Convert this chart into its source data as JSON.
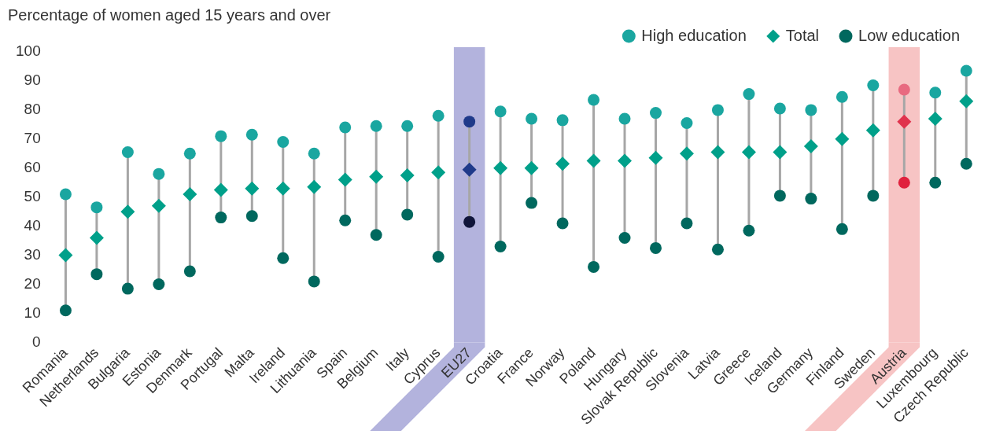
{
  "chart_data": {
    "type": "scatter",
    "ylabel": "Percentage of women aged 15 years and over",
    "categories": [
      "Romania",
      "Netherlands",
      "Bulgaria",
      "Estonia",
      "Denmark",
      "Portugal",
      "Malta",
      "Ireland",
      "Lithuania",
      "Spain",
      "Belgium",
      "Italy",
      "Cyprus",
      "EU27",
      "Croatia",
      "France",
      "Norway",
      "Poland",
      "Hungary",
      "Slovak Republic",
      "Slovenia",
      "Latvia",
      "Greece",
      "Iceland",
      "Germany",
      "Finland",
      "Sweden",
      "Austria",
      "Luxembourg",
      "Czech Republic"
    ],
    "series": [
      {
        "name": "High education",
        "type": "scatter",
        "marker": "circle",
        "color": "#1aa6a0",
        "colors": [
          "#1aa6a0",
          "#1aa6a0",
          "#1aa6a0",
          "#1aa6a0",
          "#1aa6a0",
          "#1aa6a0",
          "#1aa6a0",
          "#1aa6a0",
          "#1aa6a0",
          "#1aa6a0",
          "#1aa6a0",
          "#1aa6a0",
          "#1aa6a0",
          "#1f3a8a",
          "#1aa6a0",
          "#1aa6a0",
          "#1aa6a0",
          "#1aa6a0",
          "#1aa6a0",
          "#1aa6a0",
          "#1aa6a0",
          "#1aa6a0",
          "#1aa6a0",
          "#1aa6a0",
          "#1aa6a0",
          "#1aa6a0",
          "#1aa6a0",
          "#e86a80",
          "#1aa6a0",
          "#1aa6a0"
        ],
        "values": [
          51,
          46.5,
          65.5,
          58,
          65,
          71,
          71.5,
          69,
          65,
          74,
          74.5,
          74.5,
          78,
          76,
          79.5,
          77,
          76.5,
          83.5,
          77,
          79,
          75.5,
          80,
          85.5,
          80.5,
          80,
          84.5,
          88.5,
          87,
          86,
          93.5
        ]
      },
      {
        "name": "Total",
        "type": "scatter",
        "marker": "diamond",
        "color": "#00a08a",
        "colors": [
          "#00a08a",
          "#00a08a",
          "#00a08a",
          "#00a08a",
          "#00a08a",
          "#00a08a",
          "#00a08a",
          "#00a08a",
          "#00a08a",
          "#00a08a",
          "#00a08a",
          "#00a08a",
          "#00a08a",
          "#1f3a8a",
          "#00a08a",
          "#00a08a",
          "#00a08a",
          "#00a08a",
          "#00a08a",
          "#00a08a",
          "#00a08a",
          "#00a08a",
          "#00a08a",
          "#00a08a",
          "#00a08a",
          "#00a08a",
          "#00a08a",
          "#e0334d",
          "#00a08a",
          "#00a08a"
        ],
        "values": [
          30,
          36,
          45,
          47,
          51,
          52.5,
          53,
          53,
          53.5,
          56,
          57,
          57.5,
          58.5,
          59.5,
          60,
          60,
          61.5,
          62.5,
          62.5,
          63.5,
          65,
          65.5,
          65.5,
          65.5,
          67.5,
          70,
          73,
          76,
          77,
          83
        ]
      },
      {
        "name": "Low education",
        "type": "scatter",
        "marker": "circle",
        "color": "#00685e",
        "colors": [
          "#00685e",
          "#00685e",
          "#00685e",
          "#00685e",
          "#00685e",
          "#00685e",
          "#00685e",
          "#00685e",
          "#00685e",
          "#00685e",
          "#00685e",
          "#00685e",
          "#00685e",
          "#10153a",
          "#00685e",
          "#00685e",
          "#00685e",
          "#00685e",
          "#00685e",
          "#00685e",
          "#00685e",
          "#00685e",
          "#00685e",
          "#00685e",
          "#00685e",
          "#00685e",
          "#00685e",
          "#e0213d",
          "#00685e",
          "#00685e"
        ],
        "values": [
          11,
          23.5,
          18.5,
          20,
          24.5,
          43,
          43.5,
          29,
          21,
          42,
          37,
          44,
          29.5,
          41.5,
          33,
          48,
          41,
          26,
          36,
          32.5,
          41,
          32,
          38.5,
          50.5,
          49.5,
          39,
          50.5,
          55,
          55,
          61.5
        ]
      }
    ],
    "bands": [
      {
        "axis": "x",
        "from": "EU27",
        "to": "EU27",
        "color": "#b3b3dd"
      },
      {
        "axis": "x",
        "from": "Austria",
        "to": "Austria",
        "color": "#f7c4c4"
      }
    ],
    "ylim": [
      0,
      100
    ],
    "yticks": [
      0,
      10,
      20,
      30,
      40,
      50,
      60,
      70,
      80,
      90,
      100
    ],
    "grid": false,
    "legend": "top right"
  }
}
